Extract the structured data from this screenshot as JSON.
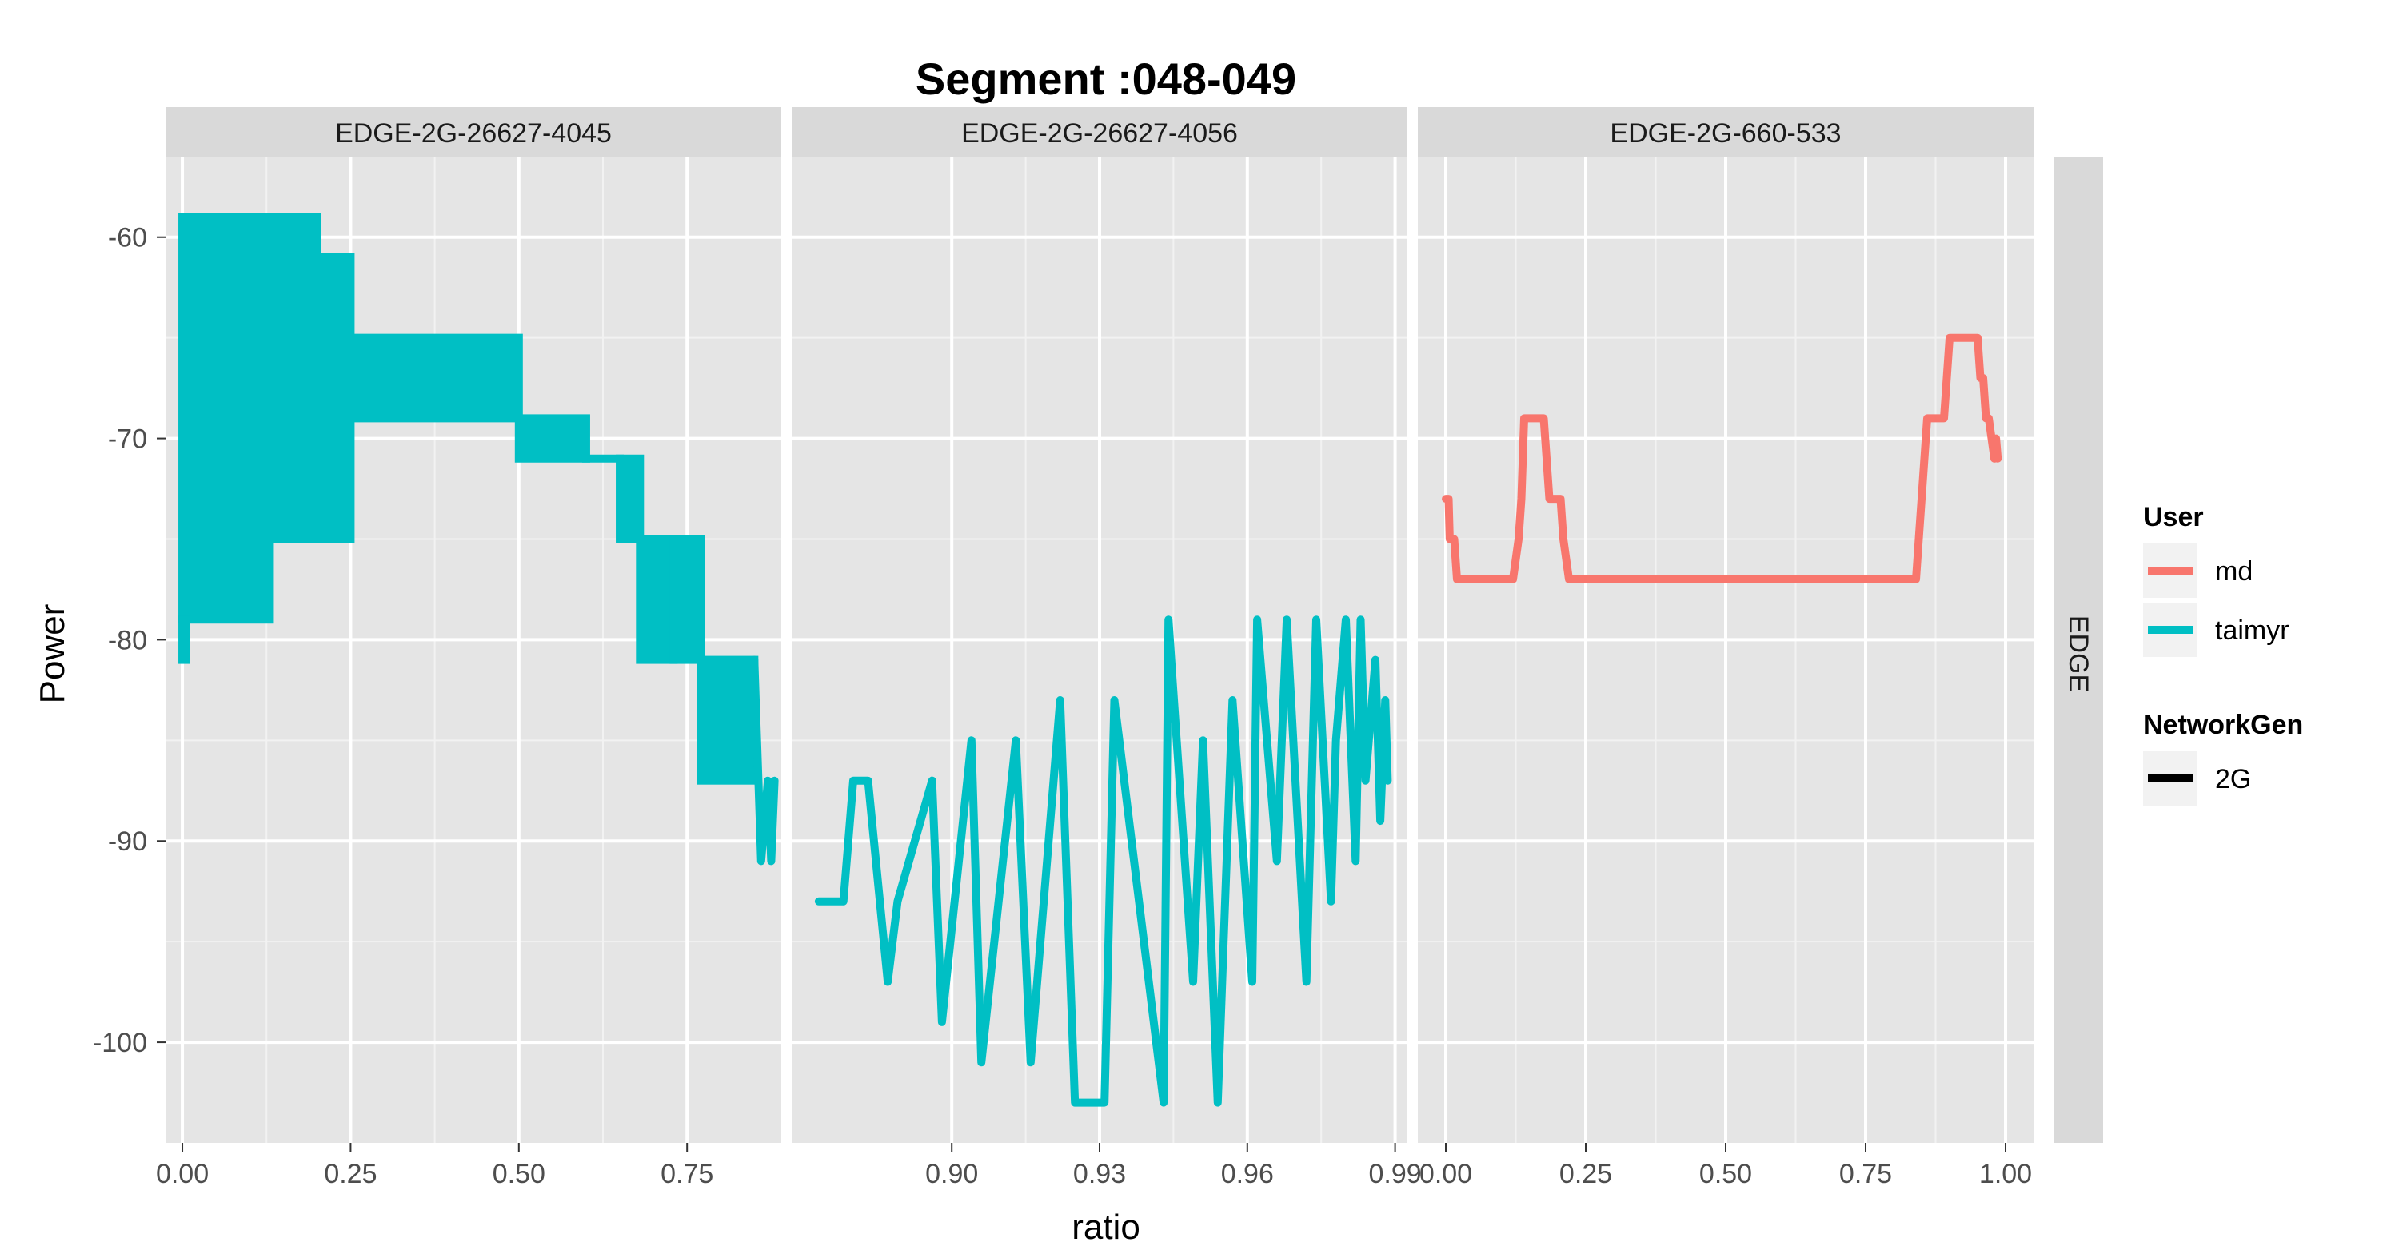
{
  "chart_data": {
    "type": "line",
    "title": "Segment :048-049",
    "xlabel": "ratio",
    "ylabel": "Power",
    "row_strip": "EDGE",
    "y_ticks": [
      -60,
      -70,
      -80,
      -90,
      -100
    ],
    "ylim": [
      -105,
      -56
    ],
    "legend": {
      "placement": "right",
      "user_title": "User",
      "user_entries": [
        {
          "name": "md",
          "color": "#F8766D"
        },
        {
          "name": "taimyr",
          "color": "#00BFC4"
        }
      ],
      "network_title": "NetworkGen",
      "network_entries": [
        {
          "name": "2G",
          "color": "#000000"
        }
      ]
    },
    "panels": [
      {
        "strip": "EDGE-2G-26627-4045",
        "xlim": [
          -0.025,
          0.89
        ],
        "x_ticks": [
          0.0,
          0.25,
          0.5,
          0.75
        ],
        "x_tick_labels": [
          "0.00",
          "0.25",
          "0.50",
          "0.75"
        ],
        "series": [
          {
            "user": "taimyr",
            "color": "#00BFC4",
            "bands": [
              {
                "x": [
                  0.0,
                  0.13
                ],
                "y": [
                  -59,
                  -79
                ]
              },
              {
                "x": [
                  0.0,
                  0.005
                ],
                "y": [
                  -79,
                  -81
                ]
              },
              {
                "x": [
                  0.13,
                  0.2
                ],
                "y": [
                  -59,
                  -75
                ]
              },
              {
                "x": [
                  0.2,
                  0.25
                ],
                "y": [
                  -61,
                  -75
                ]
              },
              {
                "x": [
                  0.25,
                  0.5
                ],
                "y": [
                  -65,
                  -69
                ]
              },
              {
                "x": [
                  0.5,
                  0.6
                ],
                "y": [
                  -69,
                  -71
                ]
              },
              {
                "x": [
                  0.6,
                  0.65
                ],
                "y": [
                  -71,
                  -71
                ]
              },
              {
                "x": [
                  0.65,
                  0.68
                ],
                "y": [
                  -71,
                  -75
                ]
              },
              {
                "x": [
                  0.68,
                  0.73
                ],
                "y": [
                  -75,
                  -81
                ]
              },
              {
                "x": [
                  0.73,
                  0.77
                ],
                "y": [
                  -75,
                  -81
                ]
              },
              {
                "x": [
                  0.77,
                  0.85
                ],
                "y": [
                  -81,
                  -87
                ]
              }
            ],
            "x": [
              0.85,
              0.86,
              0.87,
              0.875,
              0.88
            ],
            "y": [
              -81,
              -91,
              -87,
              -91,
              -87
            ]
          }
        ]
      },
      {
        "strip": "EDGE-2G-26627-4056",
        "xlim": [
          0.8675,
          0.9925
        ],
        "x_ticks": [
          0.9,
          0.93,
          0.96,
          0.99
        ],
        "x_tick_labels": [
          "0.90",
          "0.93",
          "0.96",
          "0.99"
        ],
        "series": [
          {
            "user": "taimyr",
            "color": "#00BFC4",
            "x": [
              0.873,
              0.878,
              0.88,
              0.883,
              0.887,
              0.889,
              0.896,
              0.898,
              0.904,
              0.906,
              0.913,
              0.916,
              0.922,
              0.925,
              0.931,
              0.933,
              0.943,
              0.944,
              0.949,
              0.951,
              0.954,
              0.957,
              0.961,
              0.962,
              0.966,
              0.968,
              0.972,
              0.974,
              0.977,
              0.978,
              0.98,
              0.982,
              0.983,
              0.984,
              0.986,
              0.987,
              0.988,
              0.9885
            ],
            "y": [
              -93,
              -93,
              -87,
              -87,
              -97,
              -93,
              -87,
              -99,
              -85,
              -101,
              -85,
              -101,
              -83,
              -103,
              -103,
              -83,
              -103,
              -79,
              -97,
              -85,
              -103,
              -83,
              -97,
              -79,
              -91,
              -79,
              -97,
              -79,
              -93,
              -85,
              -79,
              -91,
              -79,
              -87,
              -81,
              -89,
              -83,
              -87
            ]
          }
        ]
      },
      {
        "strip": "EDGE-2G-660-533",
        "xlim": [
          -0.05,
          1.05
        ],
        "x_ticks": [
          0.0,
          0.25,
          0.5,
          0.75,
          1.0
        ],
        "x_tick_labels": [
          "0.00",
          "0.25",
          "0.50",
          "0.75",
          "1.00"
        ],
        "series": [
          {
            "user": "md",
            "color": "#F8766D",
            "x": [
              0.0,
              0.005,
              0.007,
              0.015,
              0.02,
              0.06,
              0.12,
              0.13,
              0.135,
              0.14,
              0.16,
              0.175,
              0.185,
              0.19,
              0.205,
              0.21,
              0.22,
              0.225,
              0.84,
              0.85,
              0.86,
              0.87,
              0.89,
              0.9,
              0.91,
              0.95,
              0.955,
              0.96,
              0.965,
              0.97,
              0.975,
              0.98,
              0.983,
              0.986
            ],
            "y": [
              -73,
              -73,
              -75,
              -75,
              -77,
              -77,
              -77,
              -75,
              -73,
              -69,
              -69,
              -69,
              -73,
              -73,
              -73,
              -75,
              -77,
              -77,
              -77,
              -73,
              -69,
              -69,
              -69,
              -65,
              -65,
              -65,
              -67,
              -67,
              -69,
              -69,
              -70,
              -71,
              -70,
              -71
            ]
          }
        ]
      }
    ]
  }
}
